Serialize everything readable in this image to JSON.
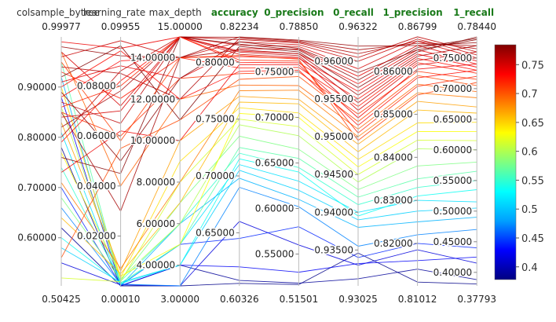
{
  "chart_data": {
    "type": "parallel_coordinates",
    "dimensions": [
      {
        "name": "colsample_bytree",
        "min": "0.50425",
        "max": "0.99977",
        "highlight": false,
        "ticks": [
          {
            "v": 0.6,
            "l": "0.60000"
          },
          {
            "v": 0.7,
            "l": "0.70000"
          },
          {
            "v": 0.8,
            "l": "0.80000"
          },
          {
            "v": 0.9,
            "l": "0.90000"
          }
        ]
      },
      {
        "name": "learning_rate",
        "min": "0.00010",
        "max": "0.09955",
        "highlight": false,
        "ticks": [
          {
            "v": 0.02,
            "l": "0.02000"
          },
          {
            "v": 0.04,
            "l": "0.04000"
          },
          {
            "v": 0.06,
            "l": "0.06000"
          },
          {
            "v": 0.08,
            "l": "0.08000"
          }
        ]
      },
      {
        "name": "max_depth",
        "min": "3.00000",
        "max": "15.00000",
        "highlight": false,
        "ticks": [
          {
            "v": 4,
            "l": "4.00000"
          },
          {
            "v": 6,
            "l": "6.00000"
          },
          {
            "v": 8,
            "l": "8.00000"
          },
          {
            "v": 10,
            "l": "10.00000"
          },
          {
            "v": 12,
            "l": "12.00000"
          },
          {
            "v": 14,
            "l": "14.00000"
          }
        ]
      },
      {
        "name": "accuracy",
        "min": "0.60326",
        "max": "0.82234",
        "highlight": true,
        "ticks": [
          {
            "v": 0.65,
            "l": "0.65000"
          },
          {
            "v": 0.7,
            "l": "0.70000"
          },
          {
            "v": 0.75,
            "l": "0.75000"
          },
          {
            "v": 0.8,
            "l": "0.80000"
          }
        ]
      },
      {
        "name": "0_precision",
        "min": "0.51501",
        "max": "0.78850",
        "highlight": true,
        "ticks": [
          {
            "v": 0.55,
            "l": "0.55000"
          },
          {
            "v": 0.6,
            "l": "0.60000"
          },
          {
            "v": 0.65,
            "l": "0.65000"
          },
          {
            "v": 0.7,
            "l": "0.70000"
          },
          {
            "v": 0.75,
            "l": "0.75000"
          }
        ]
      },
      {
        "name": "0_recall",
        "min": "0.93025",
        "max": "0.96322",
        "highlight": true,
        "ticks": [
          {
            "v": 0.935,
            "l": "0.93500"
          },
          {
            "v": 0.94,
            "l": "0.94000"
          },
          {
            "v": 0.945,
            "l": "0.94500"
          },
          {
            "v": 0.95,
            "l": "0.95000"
          },
          {
            "v": 0.955,
            "l": "0.95500"
          },
          {
            "v": 0.96,
            "l": "0.96000"
          }
        ]
      },
      {
        "name": "1_precision",
        "min": "0.81012",
        "max": "0.86799",
        "highlight": true,
        "ticks": [
          {
            "v": 0.82,
            "l": "0.82000"
          },
          {
            "v": 0.83,
            "l": "0.83000"
          },
          {
            "v": 0.84,
            "l": "0.84000"
          },
          {
            "v": 0.85,
            "l": "0.85000"
          },
          {
            "v": 0.86,
            "l": "0.86000"
          }
        ]
      },
      {
        "name": "1_recall",
        "min": "0.37793",
        "max": "0.78440",
        "highlight": true,
        "ticks": [
          {
            "v": 0.4,
            "l": "0.40000"
          },
          {
            "v": 0.45,
            "l": "0.45000"
          },
          {
            "v": 0.5,
            "l": "0.50000"
          },
          {
            "v": 0.55,
            "l": "0.55000"
          },
          {
            "v": 0.6,
            "l": "0.60000"
          },
          {
            "v": 0.65,
            "l": "0.65000"
          },
          {
            "v": 0.7,
            "l": "0.70000"
          },
          {
            "v": 0.75,
            "l": "0.75000"
          }
        ]
      }
    ],
    "color_by": "1_recall",
    "colorscale": [
      "#000080",
      "#0000ff",
      "#00a0ff",
      "#00ffff",
      "#80ff80",
      "#ffff00",
      "#ff8000",
      "#ff0000",
      "#800000"
    ],
    "colorbar": {
      "min": 0.37793,
      "max": 0.7844,
      "ticks": [
        {
          "v": 0.4,
          "l": "0.4"
        },
        {
          "v": 0.45,
          "l": "0.45"
        },
        {
          "v": 0.5,
          "l": "0.5"
        },
        {
          "v": 0.55,
          "l": "0.55"
        },
        {
          "v": 0.6,
          "l": "0.6"
        },
        {
          "v": 0.65,
          "l": "0.65"
        },
        {
          "v": 0.7,
          "l": "0.7"
        },
        {
          "v": 0.75,
          "l": "0.75"
        }
      ]
    },
    "trials": [
      [
        0.78,
        0.0001,
        3,
        0.6055,
        0.5165,
        0.9346,
        0.811,
        0.381
      ],
      [
        0.62,
        0.0001,
        4,
        0.608,
        0.518,
        0.9312,
        0.814,
        0.388
      ],
      [
        0.55,
        0.0005,
        3,
        0.66,
        0.56,
        0.933,
        0.8185,
        0.415
      ],
      [
        0.88,
        0.0002,
        4,
        0.62,
        0.53,
        0.9332,
        0.816,
        0.425
      ],
      [
        0.7,
        0.0004,
        5,
        0.645,
        0.58,
        0.934,
        0.82,
        0.44
      ],
      [
        0.66,
        0.0008,
        3,
        0.69,
        0.602,
        0.9355,
        0.822,
        0.47
      ],
      [
        0.92,
        0.0003,
        6,
        0.698,
        0.61,
        0.938,
        0.825,
        0.49
      ],
      [
        0.58,
        0.0015,
        4,
        0.705,
        0.62,
        0.939,
        0.8275,
        0.505
      ],
      [
        0.81,
        0.0006,
        5,
        0.71,
        0.63,
        0.94,
        0.83,
        0.515
      ],
      [
        0.6,
        0.001,
        4,
        0.715,
        0.64,
        0.9395,
        0.831,
        0.535
      ],
      [
        0.74,
        0.002,
        6,
        0.72,
        0.645,
        0.941,
        0.833,
        0.55
      ],
      [
        0.95,
        0.0012,
        5,
        0.725,
        0.655,
        0.942,
        0.835,
        0.565
      ],
      [
        0.68,
        0.0025,
        7,
        0.735,
        0.665,
        0.943,
        0.838,
        0.58
      ],
      [
        0.86,
        0.003,
        6,
        0.745,
        0.68,
        0.944,
        0.842,
        0.6
      ],
      [
        0.52,
        0.0018,
        8,
        0.75,
        0.69,
        0.945,
        0.844,
        0.615
      ],
      [
        0.77,
        0.004,
        5,
        0.755,
        0.7,
        0.946,
        0.846,
        0.63
      ],
      [
        0.9,
        0.0035,
        9,
        0.76,
        0.705,
        0.947,
        0.848,
        0.645
      ],
      [
        0.64,
        0.005,
        7,
        0.765,
        0.715,
        0.948,
        0.851,
        0.66
      ],
      [
        0.83,
        0.006,
        10,
        0.77,
        0.72,
        0.949,
        0.853,
        0.67
      ],
      [
        0.71,
        0.007,
        8,
        0.775,
        0.73,
        0.95,
        0.855,
        0.685
      ],
      [
        0.97,
        0.04,
        12,
        0.78,
        0.735,
        0.951,
        0.857,
        0.695
      ],
      [
        0.56,
        0.055,
        11,
        0.785,
        0.745,
        0.952,
        0.859,
        0.705
      ],
      [
        0.85,
        0.06,
        13,
        0.79,
        0.75,
        0.953,
        0.86,
        0.715
      ],
      [
        0.93,
        0.075,
        14,
        0.795,
        0.755,
        0.954,
        0.862,
        0.725
      ],
      [
        0.79,
        0.082,
        15,
        0.8,
        0.76,
        0.955,
        0.863,
        0.73
      ],
      [
        0.88,
        0.09,
        14,
        0.805,
        0.765,
        0.956,
        0.864,
        0.735
      ],
      [
        0.99,
        0.095,
        15,
        0.81,
        0.77,
        0.957,
        0.865,
        0.74
      ],
      [
        0.91,
        0.088,
        13,
        0.812,
        0.775,
        0.958,
        0.866,
        0.745
      ],
      [
        0.84,
        0.07,
        15,
        0.815,
        0.778,
        0.959,
        0.867,
        0.75
      ],
      [
        0.96,
        0.098,
        14,
        0.818,
        0.78,
        0.96,
        0.8675,
        0.755
      ],
      [
        0.87,
        0.065,
        15,
        0.82,
        0.782,
        0.9605,
        0.868,
        0.76
      ],
      [
        0.94,
        0.085,
        12,
        0.821,
        0.783,
        0.961,
        0.867,
        0.765
      ],
      [
        0.82,
        0.078,
        15,
        0.822,
        0.784,
        0.9615,
        0.8665,
        0.77
      ],
      [
        0.98,
        0.092,
        14,
        0.8223,
        0.785,
        0.962,
        0.866,
        0.775
      ],
      [
        0.89,
        0.05,
        13,
        0.818,
        0.776,
        0.9585,
        0.865,
        0.78
      ],
      [
        0.76,
        0.045,
        15,
        0.816,
        0.774,
        0.9575,
        0.8655,
        0.782
      ],
      [
        0.92,
        0.096,
        11,
        0.814,
        0.772,
        0.9565,
        0.8645,
        0.7844
      ],
      [
        0.85,
        0.03,
        14,
        0.811,
        0.77,
        0.9555,
        0.8635,
        0.77
      ],
      [
        0.8,
        0.086,
        15,
        0.809,
        0.768,
        0.9545,
        0.8625,
        0.76
      ],
      [
        0.97,
        0.072,
        15,
        0.807,
        0.766,
        0.9535,
        0.8615,
        0.75
      ],
      [
        0.73,
        0.062,
        10,
        0.798,
        0.758,
        0.9525,
        0.8605,
        0.74
      ],
      [
        0.9,
        0.094,
        12,
        0.792,
        0.752,
        0.9515,
        0.8585,
        0.73
      ],
      [
        0.86,
        0.08,
        15,
        0.802,
        0.762,
        0.9505,
        0.8565,
        0.72
      ],
      [
        0.95,
        0.058,
        14,
        0.806,
        0.764,
        0.9495,
        0.8545,
        0.71
      ]
    ]
  }
}
